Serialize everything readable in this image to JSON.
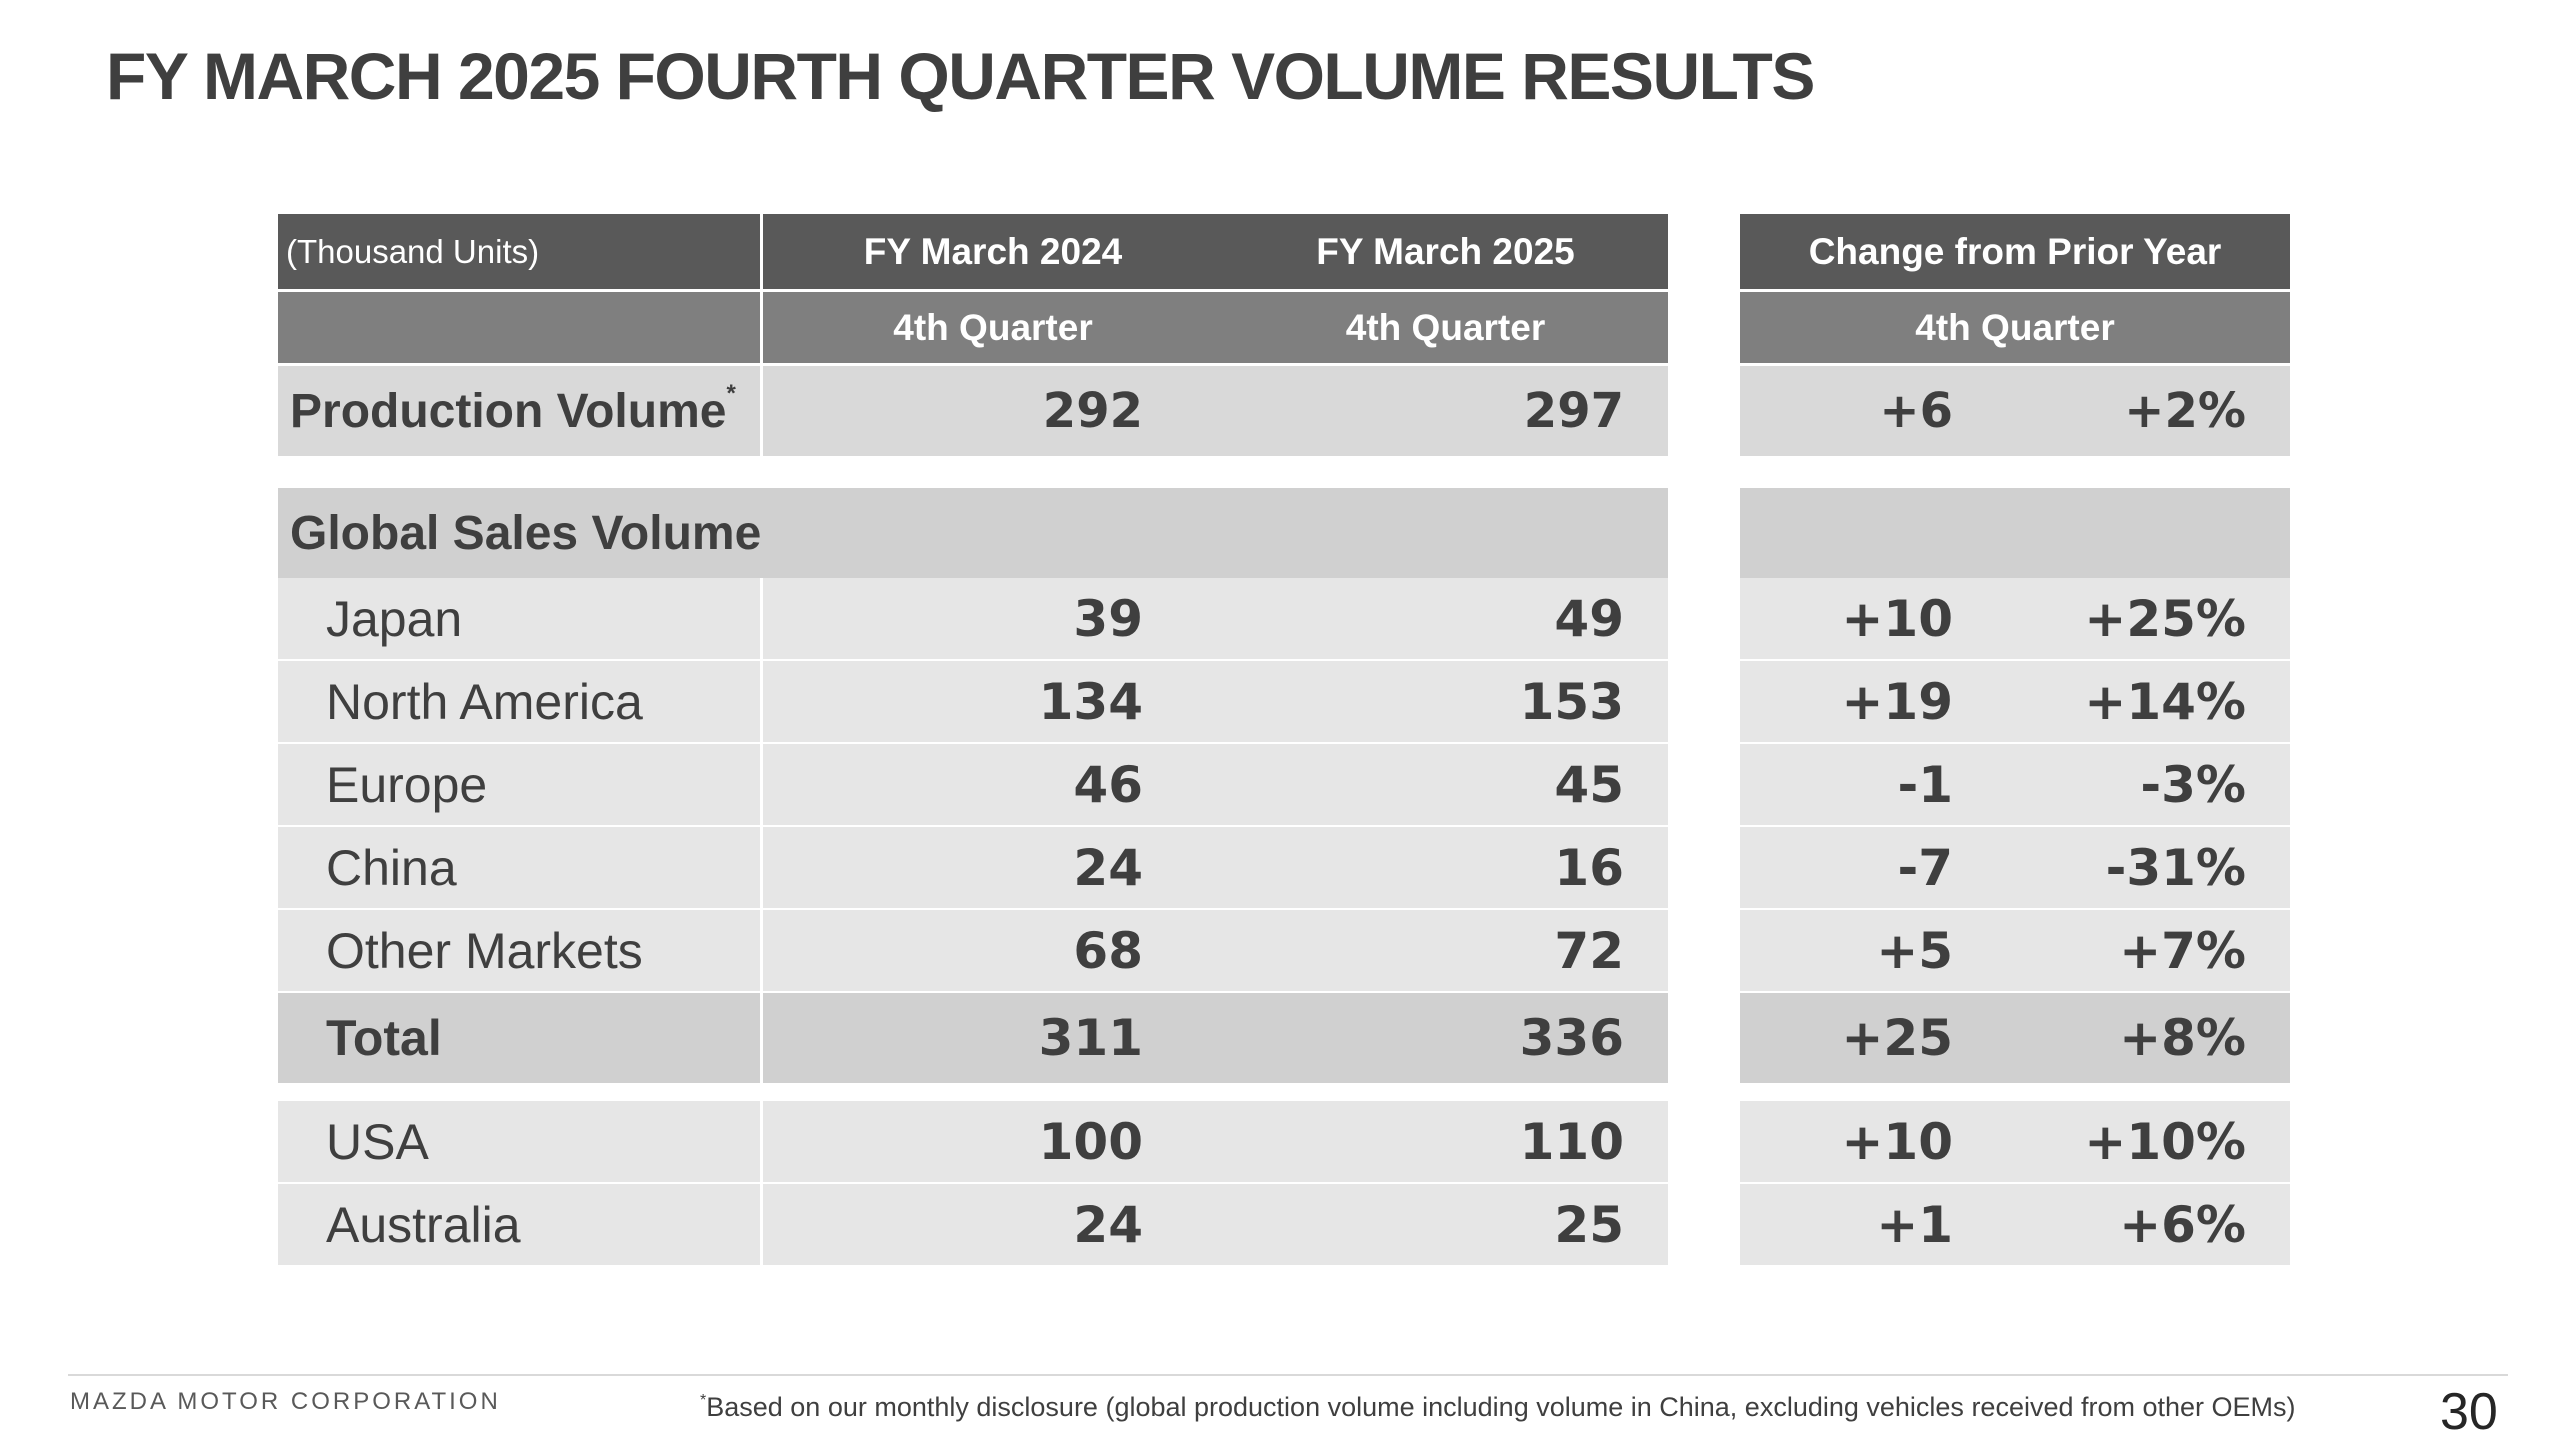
{
  "title": "FY MARCH 2025 FOURTH QUARTER VOLUME RESULTS",
  "table": {
    "units": "(Thousand Units)",
    "col_fy2024": "FY March 2024",
    "col_fy2025": "FY March 2025",
    "col_change": "Change from Prior Year",
    "quarter": "4th Quarter",
    "production": {
      "label": "Production Volume",
      "marker": "*",
      "fy2024": "292",
      "fy2025": "297",
      "change": "+6",
      "change_pct": "+2%"
    },
    "global_sales_label": "Global Sales Volume",
    "rows": [
      {
        "label": "Japan",
        "fy2024": "39",
        "fy2025": "49",
        "change": "+10",
        "change_pct": "+25%"
      },
      {
        "label": "North America",
        "fy2024": "134",
        "fy2025": "153",
        "change": "+19",
        "change_pct": "+14%"
      },
      {
        "label": "Europe",
        "fy2024": "46",
        "fy2025": "45",
        "change": "-1",
        "change_pct": "-3%"
      },
      {
        "label": "China",
        "fy2024": "24",
        "fy2025": "16",
        "change": "-7",
        "change_pct": "-31%"
      },
      {
        "label": "Other Markets",
        "fy2024": "68",
        "fy2025": "72",
        "change": "+5",
        "change_pct": "+7%"
      }
    ],
    "total": {
      "label": "Total",
      "fy2024": "311",
      "fy2025": "336",
      "change": "+25",
      "change_pct": "+8%"
    },
    "extra_rows": [
      {
        "label": "USA",
        "fy2024": "100",
        "fy2025": "110",
        "change": "+10",
        "change_pct": "+10%"
      },
      {
        "label": "Australia",
        "fy2024": "24",
        "fy2025": "25",
        "change": "+1",
        "change_pct": "+6%"
      }
    ]
  },
  "footer": {
    "company": "MAZDA MOTOR CORPORATION",
    "footnote_marker": "*",
    "footnote": "Based on our monthly disclosure (global production volume including volume in China, excluding vehicles received from other OEMs)",
    "page_number": "30"
  }
}
